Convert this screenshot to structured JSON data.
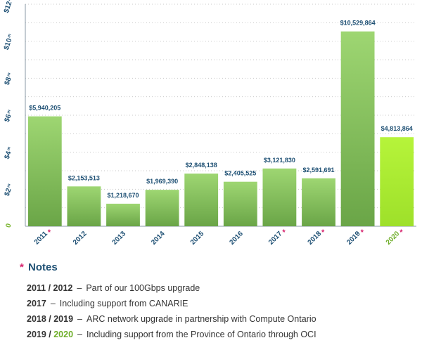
{
  "colors": {
    "bar_gradient_top": "#9ed672",
    "bar_gradient_bottom": "#6aa547",
    "highlight_bar_top": "#b6f43a",
    "highlight_bar_bottom": "#9ee02a",
    "axis_label": "#1d4f73",
    "accent_green": "#6fae2a",
    "star": "#d6246e"
  },
  "chart_data": {
    "type": "bar",
    "title": "",
    "xlabel": "",
    "ylabel": "",
    "ylim": [
      0,
      12000000
    ],
    "y_ticks": [
      0,
      2000000,
      4000000,
      6000000,
      8000000,
      10000000,
      12000000
    ],
    "y_tick_labels": [
      "0",
      "$2",
      "$4",
      "$6",
      "$8",
      "$10",
      "$12"
    ],
    "y_tick_unit": "m",
    "grid": "horizontal dotted",
    "categories": [
      "2011",
      "2012",
      "2013",
      "2014",
      "2015",
      "2016",
      "2017",
      "2018",
      "2019",
      "2020"
    ],
    "values": [
      5940205,
      2153513,
      1218670,
      1969390,
      2848138,
      2405525,
      3121830,
      2591691,
      10529864,
      4813864
    ],
    "value_labels": [
      "$5,940,205",
      "$2,153,513",
      "$1,218,670",
      "$1,969,390",
      "$2,848,138",
      "$2,405,525",
      "$3,121,830",
      "$2,591,691",
      "$10,529,864",
      "$4,813,864"
    ],
    "starred": [
      true,
      false,
      false,
      false,
      false,
      false,
      true,
      true,
      true,
      true
    ],
    "highlighted_category": "2020",
    "star_symbol": "*"
  },
  "notes": {
    "asterisk": "*",
    "title": "Notes",
    "items": [
      {
        "years": "2011 / 2012",
        "years_highlight": "",
        "text": "Part of our 100Gbps upgrade"
      },
      {
        "years": "2017",
        "years_highlight": "",
        "text": "Including support from CANARIE"
      },
      {
        "years": "2018 / 2019",
        "years_highlight": "",
        "text": "ARC network upgrade in partnership with Compute Ontario"
      },
      {
        "years": "2019 / ",
        "years_highlight": "2020",
        "text": "Including support from the Province of Ontario through OCI"
      }
    ],
    "dash": "–"
  }
}
